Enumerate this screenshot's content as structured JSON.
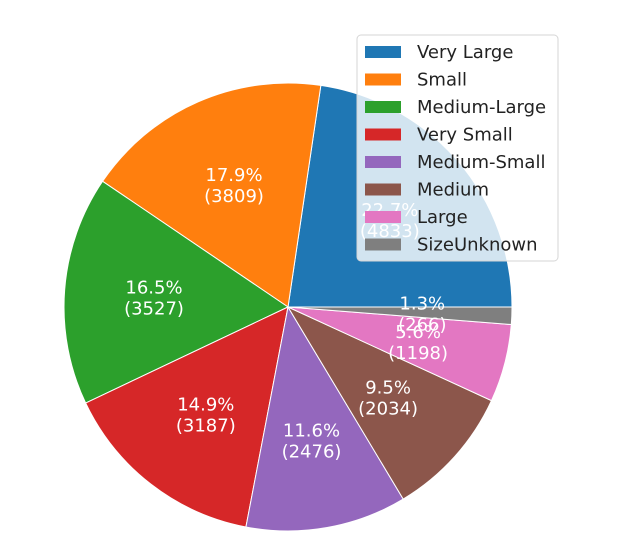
{
  "chart_data": {
    "type": "pie",
    "title": "",
    "legend_position": "top-right",
    "start_angle_deg": 0,
    "direction": "counterclockwise",
    "slices": [
      {
        "name": "Very Large",
        "value": 4833,
        "percent": "22.7%",
        "color": "#1f77b4"
      },
      {
        "name": "Small",
        "value": 3809,
        "percent": "17.9%",
        "color": "#ff7f0e"
      },
      {
        "name": "Medium-Large",
        "value": 3527,
        "percent": "16.5%",
        "color": "#2ca02c"
      },
      {
        "name": "Very Small",
        "value": 3187,
        "percent": "14.9%",
        "color": "#d62728"
      },
      {
        "name": "Medium-Small",
        "value": 2476,
        "percent": "11.6%",
        "color": "#9467bd"
      },
      {
        "name": "Medium",
        "value": 2034,
        "percent": "9.5%",
        "color": "#8c564b"
      },
      {
        "name": "Large",
        "value": 1198,
        "percent": "5.6%",
        "color": "#e377c2"
      },
      {
        "name": "SizeUnknown",
        "value": 266,
        "percent": "1.3%",
        "color": "#7f7f7f"
      }
    ]
  }
}
